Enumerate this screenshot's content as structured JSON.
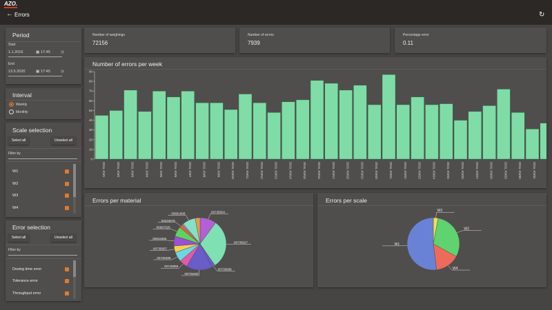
{
  "app": {
    "logo": "AZO.",
    "title": "Errors",
    "back_icon": "arrow-left-icon",
    "refresh_icon": "refresh-icon"
  },
  "period": {
    "title": "Period",
    "start_label": "Start",
    "start_date": "1.1.2016",
    "start_time": "17:45",
    "end_label": "End",
    "end_date": "13.5.2020",
    "end_time": "17:45"
  },
  "interval": {
    "title": "Interval",
    "options": [
      {
        "label": "Weekly",
        "selected": true
      },
      {
        "label": "Monthly",
        "selected": false
      }
    ]
  },
  "scale_selection": {
    "title": "Scale selection",
    "select_all": "Select all",
    "unselect_all": "Unselect all",
    "filter_placeholder": "Filter by",
    "items": [
      {
        "label": "W1",
        "checked": true
      },
      {
        "label": "W2",
        "checked": true
      },
      {
        "label": "W3",
        "checked": true
      },
      {
        "label": "W4",
        "checked": true
      }
    ]
  },
  "error_selection": {
    "title": "Error selection",
    "select_all": "Select all",
    "unselect_all": "Unselect all",
    "filter_placeholder": "Filter by",
    "items": [
      {
        "label": "Dosing time error",
        "checked": true
      },
      {
        "label": "Tolerance error",
        "checked": true
      },
      {
        "label": "Throughput error",
        "checked": true
      }
    ]
  },
  "stats": [
    {
      "label": "Number of weighings",
      "value": "72156"
    },
    {
      "label": "Number of errors",
      "value": "7939"
    },
    {
      "label": "Percentage error",
      "value": "0.11"
    }
  ],
  "colors": {
    "accent": "#e07a2c",
    "bar": "#7fdca6"
  },
  "chart_data": [
    {
      "type": "bar",
      "title": "Number of errors per week",
      "ylim": [
        0,
        90
      ],
      "yticks": [
        0,
        10,
        20,
        30,
        40,
        50,
        60,
        70,
        80,
        90
      ],
      "categories": [
        "2016, KW1",
        "2016, KW2",
        "2016, KW3",
        "2016, KW4",
        "2016, KW5",
        "2016, KW6",
        "2016, KW7",
        "2016, KW8",
        "2016, KW9",
        "2016, KW10",
        "2016, KW11",
        "2016, KW12",
        "2016, KW13",
        "2016, KW14",
        "2016, KW15",
        "2016, KW16",
        "2016, KW17",
        "2016, KW18",
        "2016, KW19",
        "2016, KW20",
        "2016, KW21",
        "2016, KW22",
        "2016, KW23",
        "2016, KW24",
        "2016, KW25",
        "2016, KW26",
        "2016, KW27",
        "2016, KW28",
        "2016, KW29",
        "2016, KW30",
        "2016, KW31",
        ""
      ],
      "values": [
        45,
        50,
        71,
        49,
        70,
        64,
        70,
        58,
        58,
        51,
        67,
        58,
        48,
        59,
        61,
        81,
        78,
        71,
        76,
        56,
        87,
        56,
        64,
        56,
        57,
        40,
        49,
        55,
        72,
        48,
        31,
        37
      ]
    },
    {
      "type": "pie",
      "title": "Errors per material",
      "slices": [
        {
          "label": "00735504",
          "value": 10,
          "color": "#b35fd6"
        },
        {
          "label": "00735627",
          "value": 30,
          "color": "#7fe0b4"
        },
        {
          "label": "00735589",
          "value": 2,
          "color": "#6a5cc9"
        },
        {
          "label": "00735482",
          "value": 16,
          "color": "#6a5cc9"
        },
        {
          "label": "00745959",
          "value": 5,
          "color": "#e05aa8"
        },
        {
          "label": "00735489",
          "value": 6,
          "color": "#6fd6e0"
        },
        {
          "label": "00735657",
          "value": 4,
          "color": "#f2d055"
        },
        {
          "label": "00919455",
          "value": 6,
          "color": "#9b4fd6"
        },
        {
          "label": "00667026",
          "value": 6,
          "color": "#5fd35f"
        },
        {
          "label": "00234576",
          "value": 2,
          "color": "#e0604a"
        },
        {
          "label": "",
          "value": 1,
          "color": "#999999"
        },
        {
          "label": "00651808",
          "value": 8,
          "color": "#86e0c8"
        },
        {
          "label": "",
          "value": 3,
          "color": "#e0a048"
        }
      ]
    },
    {
      "type": "pie",
      "title": "Errors per scale",
      "slices": [
        {
          "label": "W3",
          "value": 3,
          "color": "#f0e050"
        },
        {
          "label": "W2",
          "value": 30,
          "color": "#5fd36f"
        },
        {
          "label": "W4",
          "value": 15,
          "color": "#ee6a5a"
        },
        {
          "label": "W1",
          "value": 52,
          "color": "#6a82d6"
        }
      ]
    }
  ]
}
